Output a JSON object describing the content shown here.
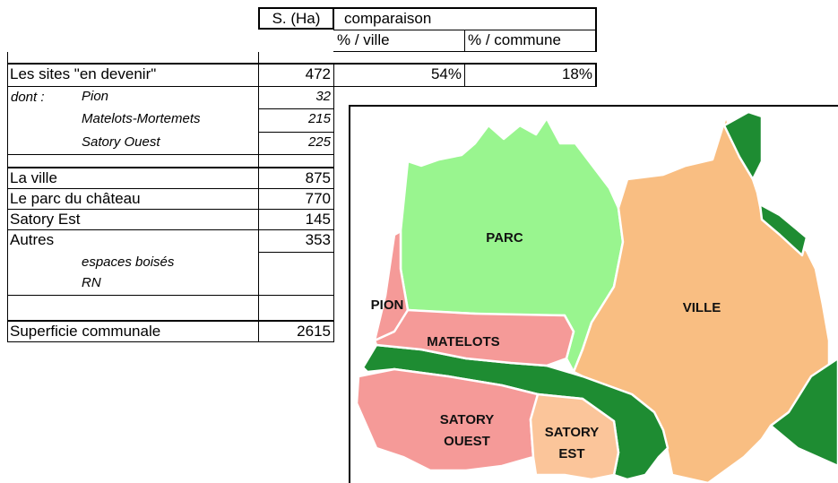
{
  "table": {
    "header": {
      "area": "S. (Ha)",
      "comparison": "comparaison",
      "per_city": "% / ville",
      "per_commune": "% / commune"
    },
    "rows": [
      {
        "label": "Les sites \"en devenir\"",
        "value": "472",
        "per_city": "54%",
        "per_commune": "18%"
      },
      {
        "prefix": "dont :",
        "label": "Pion",
        "value": "32"
      },
      {
        "label": "Matelots-Mortemets",
        "value": "215"
      },
      {
        "label": "Satory Ouest",
        "value": "225"
      },
      {
        "label": "La ville",
        "value": "875"
      },
      {
        "label": "Le parc du château",
        "value": "770"
      },
      {
        "label": "Satory Est",
        "value": "145"
      },
      {
        "label": "Autres",
        "value": "353"
      },
      {
        "label": "espaces boisés"
      },
      {
        "label": "RN"
      },
      {
        "label": "Superficie communale",
        "value": "2615"
      }
    ]
  },
  "map": {
    "labels": {
      "parc": "PARC",
      "ville": "VILLE",
      "pion": "PION",
      "matelots": "MATELOTS",
      "satory_ouest": [
        "SATORY",
        "OUEST"
      ],
      "satory_est": [
        "SATORY",
        "EST"
      ]
    }
  }
}
